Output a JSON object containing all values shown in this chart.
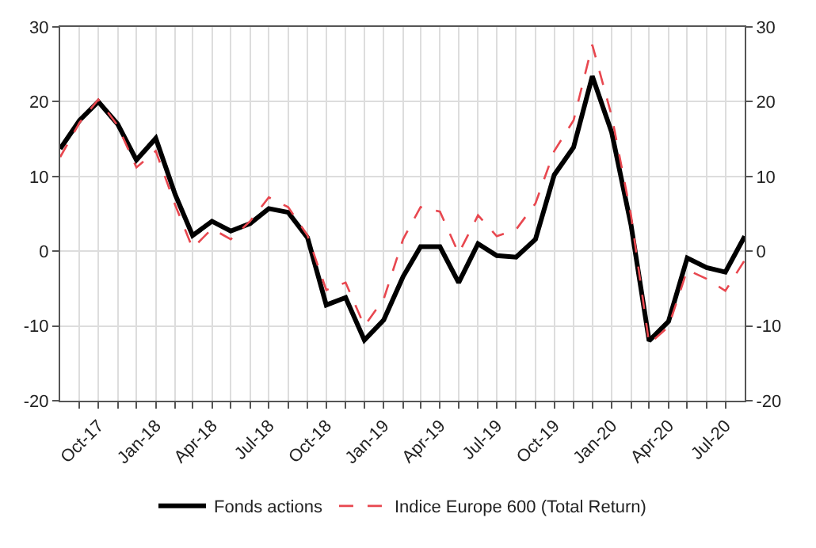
{
  "chart_data": {
    "type": "line",
    "x": [
      "2017-08",
      "2017-09",
      "2017-10",
      "2017-11",
      "2017-12",
      "2018-01",
      "2018-02",
      "2018-03",
      "2018-04",
      "2018-05",
      "2018-06",
      "2018-07",
      "2018-08",
      "2018-09",
      "2018-10",
      "2018-11",
      "2018-12",
      "2019-01",
      "2019-02",
      "2019-03",
      "2019-04",
      "2019-05",
      "2019-06",
      "2019-07",
      "2019-08",
      "2019-09",
      "2019-10",
      "2019-11",
      "2019-12",
      "2020-01",
      "2020-02",
      "2020-03",
      "2020-04",
      "2020-05",
      "2020-06",
      "2020-07",
      "2020-08"
    ],
    "series": [
      {
        "name": "Fonds actions",
        "color": "#000000",
        "line_style": "solid",
        "values": [
          13.7,
          17.5,
          20,
          17,
          12.2,
          15.1,
          7.6,
          2.1,
          4,
          2.7,
          3.7,
          5.7,
          5.2,
          1.8,
          -7.2,
          -6.2,
          -11.9,
          -9.2,
          -3.4,
          0.6,
          0.6,
          -4.2,
          1.0,
          -0.6,
          -0.8,
          1.6,
          10.2,
          13.9,
          23.4,
          15.9,
          3.5,
          -12,
          -9.4,
          -0.9,
          -2.2,
          -2.8,
          2.0
        ]
      },
      {
        "name": "Indice Europe 600 (Total Return)",
        "color": "#e8474f",
        "line_style": "dashed",
        "values": [
          12.6,
          17.2,
          20.3,
          16.8,
          11.2,
          13.4,
          6.2,
          0.4,
          3.0,
          1.6,
          4.0,
          7.2,
          5.9,
          2.1,
          -5.2,
          -4.2,
          -10.0,
          -6.4,
          1.6,
          5.9,
          5.3,
          -0.3,
          4.8,
          2.0,
          2.9,
          6.4,
          13.4,
          17.5,
          27.6,
          18.1,
          4.8,
          -12.4,
          -10.1,
          -2.5,
          -3.7,
          -5.3,
          -1.2
        ]
      }
    ],
    "xlim": [
      "2017-08",
      "2020-08"
    ],
    "xticks": [
      {
        "value": "2017-09",
        "label": null
      },
      {
        "value": "2017-10",
        "label": "Oct-17"
      },
      {
        "value": "2017-11",
        "label": null
      },
      {
        "value": "2017-12",
        "label": null
      },
      {
        "value": "2018-01",
        "label": "Jan-18"
      },
      {
        "value": "2018-02",
        "label": null
      },
      {
        "value": "2018-03",
        "label": null
      },
      {
        "value": "2018-04",
        "label": "Apr-18"
      },
      {
        "value": "2018-05",
        "label": null
      },
      {
        "value": "2018-06",
        "label": null
      },
      {
        "value": "2018-07",
        "label": "Jul-18"
      },
      {
        "value": "2018-08",
        "label": null
      },
      {
        "value": "2018-09",
        "label": null
      },
      {
        "value": "2018-10",
        "label": "Oct-18"
      },
      {
        "value": "2018-11",
        "label": null
      },
      {
        "value": "2018-12",
        "label": null
      },
      {
        "value": "2019-01",
        "label": "Jan-19"
      },
      {
        "value": "2019-02",
        "label": null
      },
      {
        "value": "2019-03",
        "label": null
      },
      {
        "value": "2019-04",
        "label": "Apr-19"
      },
      {
        "value": "2019-05",
        "label": null
      },
      {
        "value": "2019-06",
        "label": null
      },
      {
        "value": "2019-07",
        "label": "Jul-19"
      },
      {
        "value": "2019-08",
        "label": null
      },
      {
        "value": "2019-09",
        "label": null
      },
      {
        "value": "2019-10",
        "label": "Oct-19"
      },
      {
        "value": "2019-11",
        "label": null
      },
      {
        "value": "2019-12",
        "label": null
      },
      {
        "value": "2020-01",
        "label": "Jan-20"
      },
      {
        "value": "2020-02",
        "label": null
      },
      {
        "value": "2020-03",
        "label": null
      },
      {
        "value": "2020-04",
        "label": "Apr-20"
      },
      {
        "value": "2020-05",
        "label": null
      },
      {
        "value": "2020-06",
        "label": null
      },
      {
        "value": "2020-07",
        "label": "Jul-20"
      }
    ],
    "ylim": [
      -20,
      30
    ],
    "yticks": [
      -20,
      -10,
      0,
      10,
      20,
      30
    ],
    "y2lim": [
      -20,
      30
    ],
    "y2ticks": [
      -20,
      -10,
      0,
      10,
      20,
      30
    ],
    "grid": true,
    "legend": "bottom",
    "marker": "none"
  }
}
